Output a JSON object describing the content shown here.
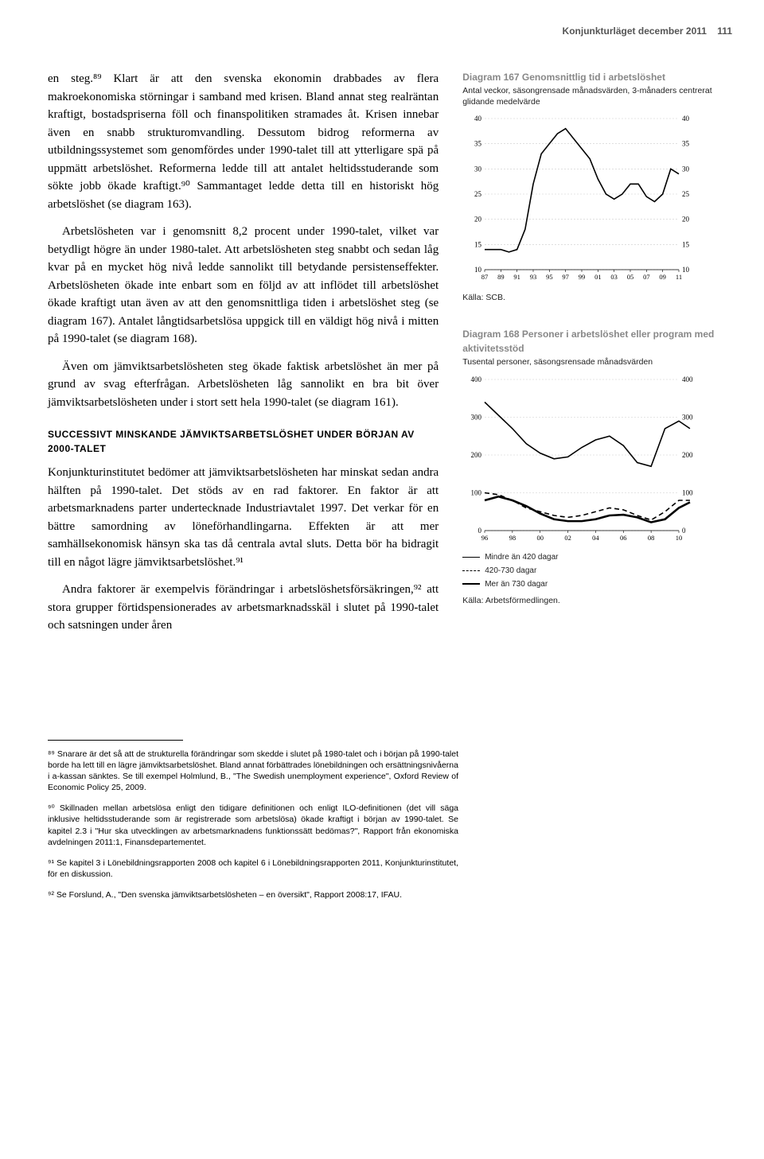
{
  "header": {
    "title": "Konjunkturläget december 2011",
    "page": "111"
  },
  "body": {
    "para1": "en steg.⁸⁹ Klart är att den svenska ekonomin drabbades av flera makroekonomiska störningar i samband med krisen. Bland annat steg realräntan kraftigt, bostadspriserna föll och finanspolitiken stramades åt. Krisen innebar även en snabb strukturomvandling. Dessutom bidrog reformerna av utbildningssystemet som genomfördes under 1990-talet till att ytterligare spä på uppmätt arbetslöshet. Reformerna ledde till att antalet heltidsstuderande som sökte jobb ökade kraftigt.⁹⁰ Sammantaget ledde detta till en historiskt hög arbetslöshet (se diagram 163).",
    "para2": "Arbetslösheten var i genomsnitt 8,2 procent under 1990-talet, vilket var betydligt högre än under 1980-talet. Att arbetslösheten steg snabbt och sedan låg kvar på en mycket hög nivå ledde sannolikt till betydande persistenseffekter. Arbetslösheten ökade inte enbart som en följd av att inflödet till arbetslöshet ökade kraftigt utan även av att den genomsnittliga tiden i arbetslöshet steg (se diagram 167). Antalet långtidsarbetslösa uppgick till en väldigt hög nivå i mitten på 1990-talet (se diagram 168).",
    "para3": "Även om jämviktsarbetslösheten steg ökade faktisk arbetslöshet än mer på grund av svag efterfrågan. Arbetslösheten låg sannolikt en bra bit över jämviktsarbetslösheten under i stort sett hela 1990-talet (se diagram 161).",
    "section_heading": "SUCCESSIVT MINSKANDE JÄMVIKTSARBETSLÖSHET UNDER BÖRJAN AV 2000-TALET",
    "para4": "Konjunkturinstitutet bedömer att jämviktsarbetslösheten har minskat sedan andra hälften på 1990-talet. Det stöds av en rad faktorer. En faktor är att arbetsmarknadens parter undertecknade Industriavtalet 1997. Det verkar för en bättre samordning av löneförhandlingarna. Effekten är att mer samhällsekonomisk hänsyn ska tas då centrala avtal sluts. Detta bör ha bidragit till en något lägre jämviktsarbetslöshet.⁹¹",
    "para5": "Andra faktorer är exempelvis förändringar i arbetslöshetsförsäkringen,⁹² att stora grupper förtidspensionerades av arbetsmarknadsskäl i slutet på 1990-talet och satsningen under åren"
  },
  "chart167": {
    "title": "Diagram 167 Genomsnittlig tid i arbetslöshet",
    "subtitle": "Antal veckor, säsongrensade månadsvärden, 3-månaders centrerat glidande medelvärde",
    "source": "Källa: SCB.",
    "ylim": [
      10,
      40
    ],
    "ytick_step": 5,
    "xlim": [
      87,
      111
    ],
    "xtick_labels": [
      "87",
      "89",
      "91",
      "93",
      "95",
      "97",
      "99",
      "01",
      "03",
      "05",
      "07",
      "09",
      "11"
    ],
    "grid_color": "#cccccc",
    "line_color": "#000000",
    "line_width": 1.6,
    "data": [
      [
        87,
        14
      ],
      [
        88,
        14
      ],
      [
        89,
        14
      ],
      [
        90,
        13.5
      ],
      [
        91,
        14
      ],
      [
        92,
        18
      ],
      [
        93,
        27
      ],
      [
        94,
        33
      ],
      [
        95,
        35
      ],
      [
        96,
        37
      ],
      [
        97,
        38
      ],
      [
        98,
        36
      ],
      [
        99,
        34
      ],
      [
        100,
        32
      ],
      [
        101,
        28
      ],
      [
        102,
        25
      ],
      [
        103,
        24
      ],
      [
        104,
        25
      ],
      [
        105,
        27
      ],
      [
        106,
        27
      ],
      [
        107,
        24.5
      ],
      [
        108,
        23.5
      ],
      [
        109,
        25
      ],
      [
        110,
        30
      ],
      [
        111,
        29
      ]
    ]
  },
  "chart168": {
    "title": "Diagram 168 Personer i arbetslöshet eller program med aktivitetsstöd",
    "subtitle": "Tusental personer, säsongsrensade månadsvärden",
    "source": "Källa: Arbetsförmedlingen.",
    "ylim": [
      0,
      400
    ],
    "ytick_step": 100,
    "xlim": [
      96,
      110
    ],
    "xtick_labels": [
      "96",
      "98",
      "00",
      "02",
      "04",
      "06",
      "08",
      "10"
    ],
    "grid_color": "#cccccc",
    "legend": {
      "s1": "Mindre än 420 dagar",
      "s2": "420-730 dagar",
      "s3": "Mer än 730 dagar"
    },
    "series": {
      "under420": {
        "color": "#000000",
        "width": 1.6,
        "dash": "none",
        "data": [
          [
            96,
            340
          ],
          [
            97,
            305
          ],
          [
            98,
            270
          ],
          [
            99,
            230
          ],
          [
            100,
            205
          ],
          [
            101,
            190
          ],
          [
            102,
            195
          ],
          [
            103,
            220
          ],
          [
            104,
            240
          ],
          [
            105,
            250
          ],
          [
            106,
            225
          ],
          [
            107,
            180
          ],
          [
            108,
            170
          ],
          [
            109,
            270
          ],
          [
            110,
            290
          ],
          [
            110.8,
            270
          ]
        ]
      },
      "mid": {
        "color": "#000000",
        "width": 1.6,
        "dash": "6,4",
        "data": [
          [
            96,
            100
          ],
          [
            97,
            95
          ],
          [
            98,
            80
          ],
          [
            99,
            60
          ],
          [
            100,
            50
          ],
          [
            101,
            40
          ],
          [
            102,
            35
          ],
          [
            103,
            40
          ],
          [
            104,
            50
          ],
          [
            105,
            60
          ],
          [
            106,
            55
          ],
          [
            107,
            40
          ],
          [
            108,
            28
          ],
          [
            109,
            50
          ],
          [
            110,
            80
          ],
          [
            110.8,
            80
          ]
        ]
      },
      "over730": {
        "color": "#000000",
        "width": 2.6,
        "dash": "none",
        "data": [
          [
            96,
            80
          ],
          [
            97,
            90
          ],
          [
            98,
            80
          ],
          [
            99,
            65
          ],
          [
            100,
            45
          ],
          [
            101,
            30
          ],
          [
            102,
            25
          ],
          [
            103,
            25
          ],
          [
            104,
            30
          ],
          [
            105,
            40
          ],
          [
            106,
            42
          ],
          [
            107,
            35
          ],
          [
            108,
            22
          ],
          [
            109,
            30
          ],
          [
            110,
            60
          ],
          [
            110.8,
            75
          ]
        ]
      }
    }
  },
  "footnotes": {
    "fn89": "⁸⁹ Snarare är det så att de strukturella förändringar som skedde i slutet på 1980-talet och i början på 1990-talet borde ha lett till en lägre jämviktsarbetslöshet. Bland annat förbättrades lönebildningen och ersättningsnivåerna i a-kassan sänktes. Se till exempel Holmlund, B., \"The Swedish unemployment experience\", Oxford Review of Economic Policy 25, 2009.",
    "fn90": "⁹⁰ Skillnaden mellan arbetslösa enligt den tidigare definitionen och enligt ILO-definitionen (det vill säga inklusive heltidsstuderande som är registrerade som arbetslösa) ökade kraftigt i början av 1990-talet. Se kapitel 2.3 i \"Hur ska utvecklingen av arbetsmarknadens funktionssätt bedömas?\", Rapport från ekonomiska avdelningen 2011:1, Finansdepartementet.",
    "fn91": "⁹¹ Se kapitel 3 i Lönebildningsrapporten 2008 och kapitel 6 i Lönebildningsrapporten 2011, Konjunkturinstitutet, för en diskussion.",
    "fn92": "⁹² Se Forslund, A., \"Den svenska jämviktsarbetslösheten – en översikt\", Rapport 2008:17, IFAU."
  }
}
